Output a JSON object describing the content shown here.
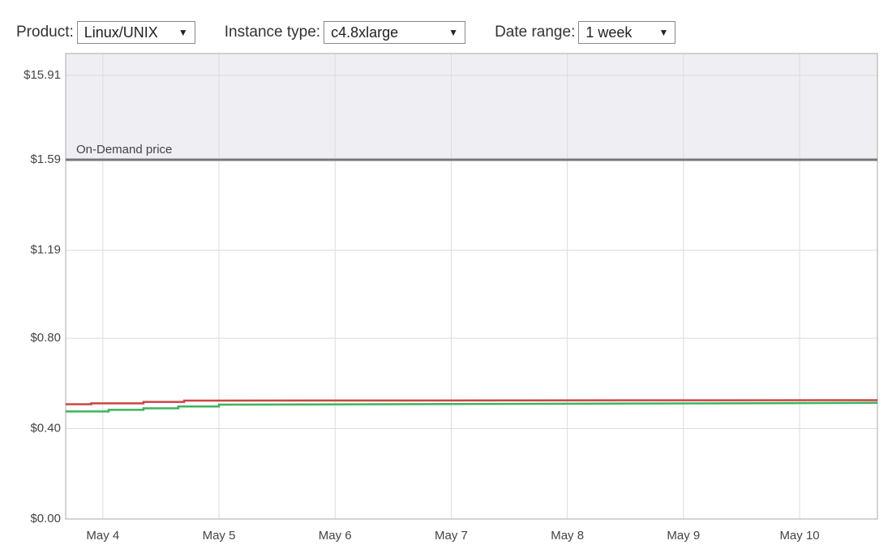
{
  "controls": [
    {
      "label": "Product:",
      "value": "Linux/UNIX"
    },
    {
      "label": "Instance type:",
      "value": "c4.8xlarge"
    },
    {
      "label": "Date range:",
      "value": "1 week"
    }
  ],
  "chart_data": {
    "type": "line",
    "xlim": [
      3.68,
      10.67
    ],
    "xticks": [
      {
        "value": 4,
        "label": "May 4"
      },
      {
        "value": 5,
        "label": "May 5"
      },
      {
        "value": 6,
        "label": "May 6"
      },
      {
        "value": 7,
        "label": "May 7"
      },
      {
        "value": 8,
        "label": "May 8"
      },
      {
        "value": 9,
        "label": "May 9"
      },
      {
        "value": 10,
        "label": "May 10"
      }
    ],
    "ylim": [
      0,
      19.6
    ],
    "yticks": [
      {
        "value": 0,
        "label": "$0.00"
      },
      {
        "value": 0.4,
        "label": "$0.40"
      },
      {
        "value": 0.8,
        "label": "$0.80"
      },
      {
        "value": 1.19,
        "label": "$1.19"
      },
      {
        "value": 1.59,
        "label": "$1.59"
      },
      {
        "value": 15.91,
        "label": "$15.91"
      }
    ],
    "grid": true,
    "on_demand": {
      "label": "On-Demand price",
      "value": 1.59,
      "color": "#777777"
    },
    "series": [
      {
        "color": "#cc4444",
        "x": [
          3.68,
          3.9,
          3.9,
          4.35,
          4.35,
          4.7,
          4.7,
          10.67
        ],
        "values": [
          0.508,
          0.508,
          0.512,
          0.512,
          0.518,
          0.518,
          0.524,
          0.526
        ]
      },
      {
        "color": "#3bb55a",
        "x": [
          3.68,
          4.05,
          4.05,
          4.35,
          4.35,
          4.65,
          4.65,
          5.0,
          5.0,
          10.67
        ],
        "values": [
          0.476,
          0.476,
          0.483,
          0.483,
          0.49,
          0.49,
          0.498,
          0.498,
          0.506,
          0.514
        ]
      }
    ]
  }
}
